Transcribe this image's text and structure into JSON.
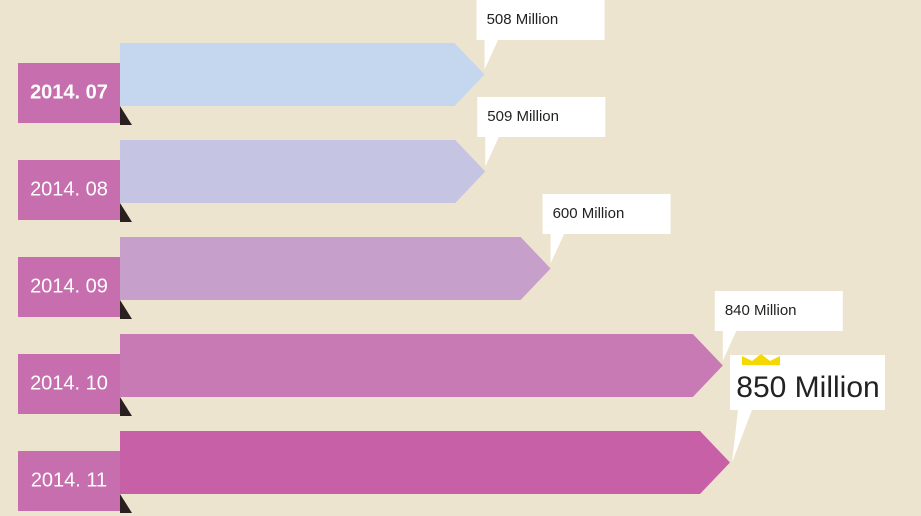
{
  "chart_data": {
    "type": "bar",
    "categories": [
      "2014. 07",
      "2014. 08",
      "2014. 09",
      "2014. 10",
      "2014. 11"
    ],
    "values": [
      508,
      509,
      600,
      840,
      850
    ],
    "value_labels": [
      "508 Million",
      "509 Million",
      "600 Million",
      "840 Million",
      "850 Million"
    ],
    "colors": [
      "#c5d7ef",
      "#c6c4e3",
      "#c79fcb",
      "#c87ab5",
      "#c860a7"
    ],
    "tab_color": "#c76fae"
  }
}
